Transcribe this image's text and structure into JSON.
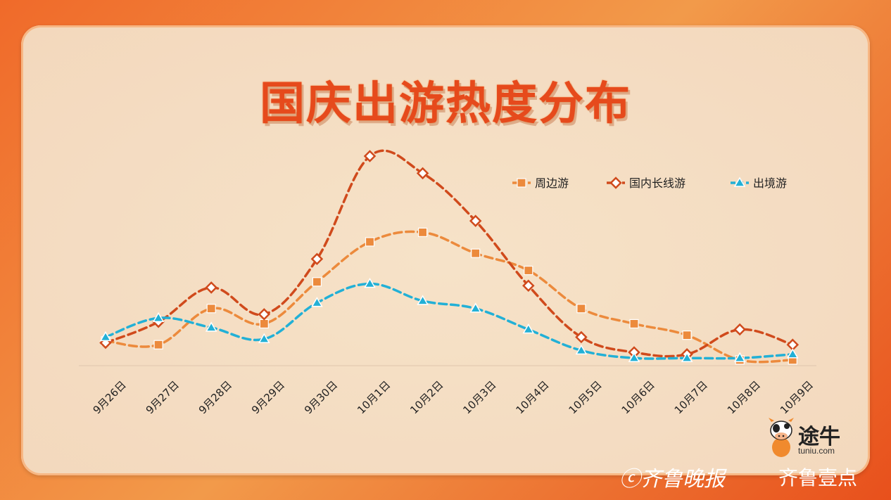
{
  "chart_data": {
    "type": "line",
    "title": "国庆出游热度分布",
    "xlabel": "",
    "ylabel": "",
    "categories": [
      "9月26日",
      "9月27日",
      "9月28日",
      "9月29日",
      "9月30日",
      "10月1日",
      "10月2日",
      "10月3日",
      "10月4日",
      "10月5日",
      "10月6日",
      "10月7日",
      "10月8日",
      "10月9日"
    ],
    "series": [
      {
        "name": "周边游",
        "color": "#ec8a3c",
        "marker": "square",
        "values": [
          13,
          11,
          30,
          22,
          44,
          65,
          70,
          59,
          50,
          30,
          22,
          16,
          3,
          3
        ]
      },
      {
        "name": "国内长线游",
        "color": "#d04a1c",
        "marker": "diamond",
        "values": [
          12,
          23,
          41,
          27,
          56,
          110,
          101,
          76,
          42,
          15,
          7,
          6,
          19,
          11
        ]
      },
      {
        "name": "出境游",
        "color": "#22b0d6",
        "marker": "triangle",
        "values": [
          15,
          25,
          20,
          14,
          33,
          43,
          34,
          30,
          19,
          8,
          4,
          4,
          4,
          6
        ]
      }
    ],
    "ylim": [
      0,
      110
    ],
    "grid": false,
    "legend": "top-right"
  },
  "brand": {
    "logo_text": "途牛",
    "logo_url": "tuniu.com"
  },
  "watermark": {
    "left": "ⓒ齐鲁晚报",
    "right": "齐鲁壹点"
  }
}
